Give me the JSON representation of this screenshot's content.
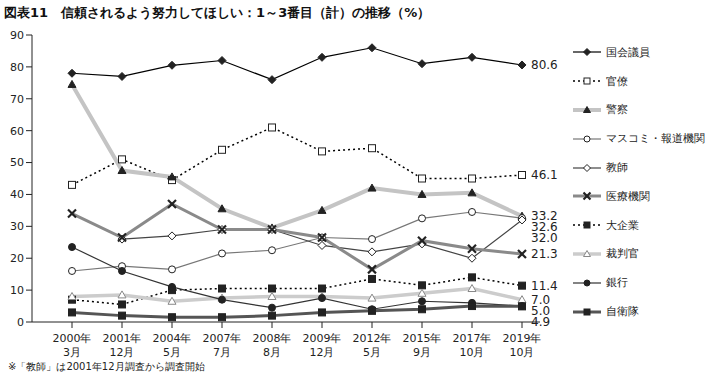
{
  "chart_data": {
    "type": "line",
    "title": "図表11　信頼されるよう努力してほしい：1～3番目（計）の推移（%）",
    "note": "※「教師」は2001年12月調査から調査開始",
    "categories": [
      "2000年3月",
      "2001年12月",
      "2004年5月",
      "2007年7月",
      "2008年8月",
      "2009年12月",
      "2012年5月",
      "2015年9月",
      "2017年10月",
      "2019年10月"
    ],
    "ylim": [
      0,
      90
    ],
    "yticks": [
      0,
      10,
      20,
      30,
      40,
      50,
      60,
      70,
      80,
      90
    ],
    "grid": false,
    "legend": "right",
    "series": [
      {
        "name": "国会議員",
        "color": "#000000",
        "marker": "diamond",
        "line_style": "solid",
        "values": [
          78,
          77,
          80.5,
          82,
          76,
          83,
          86,
          81,
          83,
          80.6
        ],
        "value_labels": [
          null,
          null,
          null,
          null,
          null,
          null,
          null,
          null,
          null,
          "80.6"
        ]
      },
      {
        "name": "官僚",
        "color": "#000000",
        "marker": "square_open",
        "line_style": "dotted",
        "values": [
          43,
          51,
          44.5,
          54,
          61,
          53.5,
          54.5,
          45,
          45,
          46.1
        ],
        "value_labels": [
          null,
          null,
          null,
          null,
          null,
          null,
          null,
          null,
          null,
          "46.1"
        ]
      },
      {
        "name": "警察",
        "color": "#c4c4c4",
        "marker": "triangle",
        "line_style": "solid",
        "values": [
          74.5,
          47.5,
          45.5,
          35.5,
          29.5,
          35,
          42,
          40,
          40.5,
          33.2
        ],
        "value_labels": [
          null,
          null,
          null,
          null,
          null,
          null,
          null,
          null,
          null,
          "33.2"
        ]
      },
      {
        "name": "マスコミ・報道機関",
        "color": "#777777",
        "marker": "circle_open",
        "line_style": "solid",
        "values": [
          16,
          17.5,
          16.5,
          21.5,
          22.5,
          26.5,
          26,
          32.5,
          34.5,
          32.6
        ],
        "value_labels": [
          null,
          null,
          null,
          null,
          null,
          null,
          null,
          null,
          null,
          "32.6"
        ]
      },
      {
        "name": "教師",
        "color": "#444444",
        "marker": "diamond_open",
        "line_style": "solid",
        "values": [
          null,
          26,
          27,
          29,
          29,
          24,
          22,
          24.5,
          20,
          32
        ],
        "value_labels": [
          null,
          null,
          null,
          null,
          null,
          null,
          null,
          null,
          null,
          "32.0"
        ]
      },
      {
        "name": "医療機関",
        "color": "#8a8a8a",
        "marker": "x",
        "line_style": "solid",
        "values": [
          34,
          26.5,
          37,
          29,
          29,
          26.5,
          16.5,
          25.5,
          23,
          21.3
        ],
        "value_labels": [
          null,
          null,
          null,
          null,
          null,
          null,
          null,
          null,
          null,
          "21.3"
        ]
      },
      {
        "name": "大企業",
        "color": "#000000",
        "marker": "square",
        "line_style": "dotted",
        "values": [
          7,
          5.5,
          10,
          10.5,
          10.5,
          10.5,
          13.5,
          11.5,
          14,
          11.4
        ],
        "value_labels": [
          null,
          null,
          null,
          null,
          null,
          null,
          null,
          null,
          null,
          "11.4"
        ]
      },
      {
        "name": "裁判官",
        "color": "#cccccc",
        "marker": "triangle_open",
        "line_style": "solid",
        "values": [
          8,
          8.5,
          6.5,
          7.5,
          8,
          8,
          7.5,
          9,
          10.5,
          7
        ],
        "value_labels": [
          null,
          null,
          null,
          null,
          null,
          null,
          null,
          null,
          null,
          "7.0"
        ]
      },
      {
        "name": "銀行",
        "color": "#333333",
        "marker": "circle",
        "line_style": "solid",
        "values": [
          23.5,
          16,
          11,
          7,
          4.5,
          7.5,
          4,
          6.5,
          6,
          5
        ],
        "value_labels": [
          null,
          null,
          null,
          null,
          null,
          null,
          null,
          null,
          null,
          "5.0"
        ]
      },
      {
        "name": "自衛隊",
        "color": "#555555",
        "marker": "square",
        "line_style": "solid",
        "values": [
          3,
          2,
          1.5,
          1.5,
          2,
          3,
          3.5,
          4,
          5,
          4.9
        ],
        "value_labels": [
          null,
          null,
          null,
          null,
          null,
          null,
          null,
          null,
          null,
          "4.9"
        ]
      }
    ]
  }
}
